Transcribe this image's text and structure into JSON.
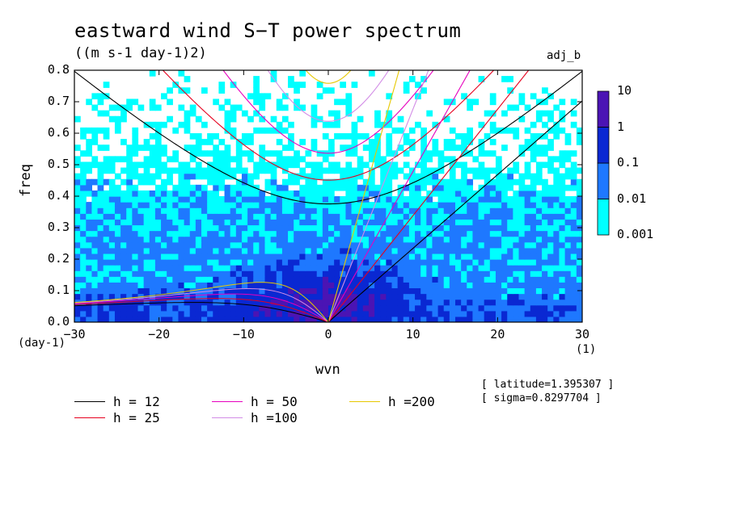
{
  "title": "eastward wind S−T power spectrum",
  "units": "((m s-1 day-1)2)",
  "tag": "adj_b",
  "info": {
    "latitude": "[ latitude=1.395307 ]",
    "sigma": "[ sigma=0.8297704 ]"
  },
  "chart_data": {
    "type": "heatmap",
    "title": "eastward wind S−T power spectrum",
    "subtitle": "((m s-1 day-1)2)",
    "xlabel": "wvn",
    "ylabel": "freq",
    "x_unit": "(1)",
    "y_unit": "(day-1)",
    "xlim": [
      -30,
      30
    ],
    "ylim": [
      0,
      0.8
    ],
    "xticks": [
      -30,
      -20,
      -10,
      0,
      10,
      20,
      30
    ],
    "xtick_labels": [
      "−30",
      "−20",
      "−10",
      "0",
      "10",
      "20",
      "30"
    ],
    "yticks": [
      0.0,
      0.1,
      0.2,
      0.3,
      0.4,
      0.5,
      0.6,
      0.7,
      0.8
    ],
    "ytick_labels": [
      "0.0",
      "0.1",
      "0.2",
      "0.3",
      "0.4",
      "0.5",
      "0.6",
      "0.7",
      "0.8"
    ],
    "colorbar": {
      "levels": [
        "0.001",
        "0.01",
        "0.1",
        "1",
        "10"
      ],
      "colors": [
        "#00ffff",
        "#1e78ff",
        "#0a28d2",
        "#4b14b4"
      ]
    },
    "dispersion_curves": [
      {
        "name": "h = 12",
        "color": "#000000"
      },
      {
        "name": "h = 25",
        "color": "#e6001e"
      },
      {
        "name": "h = 50",
        "color": "#e600be"
      },
      {
        "name": "h =100",
        "color": "#d28ce6"
      },
      {
        "name": "h =200",
        "color": "#e6c800"
      }
    ],
    "legend_placement": "bottom"
  }
}
